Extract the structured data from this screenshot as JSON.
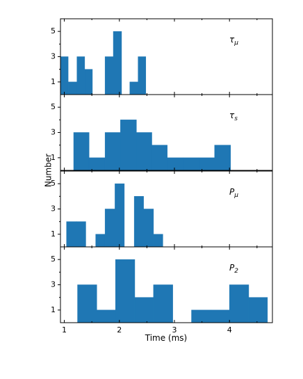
{
  "chart_data": {
    "type": "bar",
    "xlabel": "Time (ms)",
    "ylabel": "Number",
    "xlim": [
      0.93,
      4.78
    ],
    "xticks": [
      "1",
      "2",
      "3",
      "4"
    ],
    "panels": [
      {
        "label_base": "τ",
        "label_sub": "μ",
        "ylim": [
          0,
          6
        ],
        "yticks": [
          "1",
          "3",
          "5"
        ],
        "bins": [
          {
            "x0": 0.93,
            "x1": 1.07,
            "v": 3
          },
          {
            "x0": 1.07,
            "x1": 1.23,
            "v": 1
          },
          {
            "x0": 1.23,
            "x1": 1.37,
            "v": 3
          },
          {
            "x0": 1.37,
            "x1": 1.51,
            "v": 2
          },
          {
            "x0": 1.51,
            "x1": 1.74,
            "v": 0
          },
          {
            "x0": 1.74,
            "x1": 1.89,
            "v": 3
          },
          {
            "x0": 1.89,
            "x1": 2.04,
            "v": 5
          },
          {
            "x0": 2.04,
            "x1": 2.19,
            "v": 0
          },
          {
            "x0": 2.19,
            "x1": 2.34,
            "v": 1
          },
          {
            "x0": 2.34,
            "x1": 2.48,
            "v": 3
          }
        ]
      },
      {
        "label_base": "τ",
        "label_sub": "s",
        "ylim": [
          0,
          6
        ],
        "yticks": [
          "1",
          "3",
          "5"
        ],
        "bins": [
          {
            "x0": 1.17,
            "x1": 1.45,
            "v": 3
          },
          {
            "x0": 1.45,
            "x1": 1.74,
            "v": 1
          },
          {
            "x0": 1.74,
            "x1": 2.02,
            "v": 3
          },
          {
            "x0": 2.02,
            "x1": 2.31,
            "v": 4
          },
          {
            "x0": 2.31,
            "x1": 2.59,
            "v": 3
          },
          {
            "x0": 2.59,
            "x1": 2.87,
            "v": 2
          },
          {
            "x0": 2.87,
            "x1": 3.16,
            "v": 1
          },
          {
            "x0": 3.16,
            "x1": 3.44,
            "v": 1
          },
          {
            "x0": 3.44,
            "x1": 3.73,
            "v": 1
          },
          {
            "x0": 3.73,
            "x1": 4.02,
            "v": 2
          }
        ]
      },
      {
        "label_base": "P",
        "label_sub": "μ",
        "ylim": [
          0,
          6
        ],
        "yticks": [
          "1",
          "3",
          "5"
        ],
        "bins": [
          {
            "x0": 1.04,
            "x1": 1.22,
            "v": 2
          },
          {
            "x0": 1.22,
            "x1": 1.39,
            "v": 2
          },
          {
            "x0": 1.57,
            "x1": 1.74,
            "v": 1
          },
          {
            "x0": 1.74,
            "x1": 1.92,
            "v": 3
          },
          {
            "x0": 1.92,
            "x1": 2.09,
            "v": 5
          },
          {
            "x0": 2.27,
            "x1": 2.44,
            "v": 4
          },
          {
            "x0": 2.44,
            "x1": 2.62,
            "v": 3
          },
          {
            "x0": 2.62,
            "x1": 2.79,
            "v": 1
          }
        ]
      },
      {
        "label_base": "P",
        "label_sub": "2",
        "ylim": [
          0,
          6
        ],
        "yticks": [
          "1",
          "3",
          "5"
        ],
        "bins": [
          {
            "x0": 1.24,
            "x1": 1.59,
            "v": 3
          },
          {
            "x0": 1.59,
            "x1": 1.93,
            "v": 1
          },
          {
            "x0": 1.93,
            "x1": 2.28,
            "v": 5
          },
          {
            "x0": 2.28,
            "x1": 2.62,
            "v": 2
          },
          {
            "x0": 2.62,
            "x1": 2.97,
            "v": 3
          },
          {
            "x0": 3.31,
            "x1": 3.66,
            "v": 1
          },
          {
            "x0": 3.66,
            "x1": 4.0,
            "v": 1
          },
          {
            "x0": 4.0,
            "x1": 4.35,
            "v": 3
          },
          {
            "x0": 4.35,
            "x1": 4.69,
            "v": 2
          }
        ]
      }
    ],
    "colors": {
      "bar": "#1f77b4"
    }
  }
}
